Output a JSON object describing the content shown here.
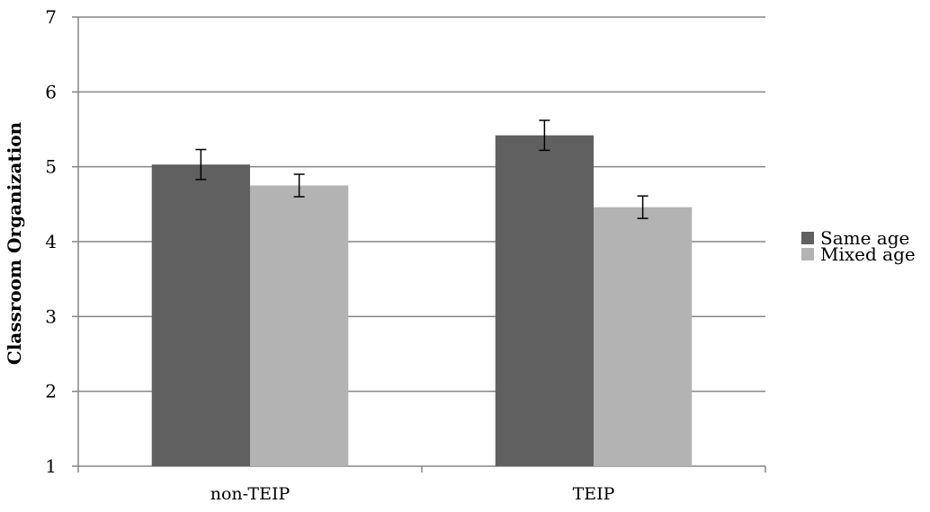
{
  "chart_data": {
    "type": "bar",
    "title": "",
    "xlabel": "",
    "ylabel": "Classroom Organization",
    "ylim": [
      1,
      7
    ],
    "yticks": [
      1,
      2,
      3,
      4,
      5,
      6,
      7
    ],
    "grid": true,
    "legend_position": "right",
    "categories": [
      "non-TEIP",
      "TEIP"
    ],
    "series": [
      {
        "name": "Same age",
        "values": [
          5.03,
          5.42
        ],
        "error": [
          0.2,
          0.2
        ],
        "color": "#606060"
      },
      {
        "name": "Mixed age",
        "values": [
          4.75,
          4.46
        ],
        "error": [
          0.15,
          0.15
        ],
        "color": "#b3b3b3"
      }
    ]
  }
}
